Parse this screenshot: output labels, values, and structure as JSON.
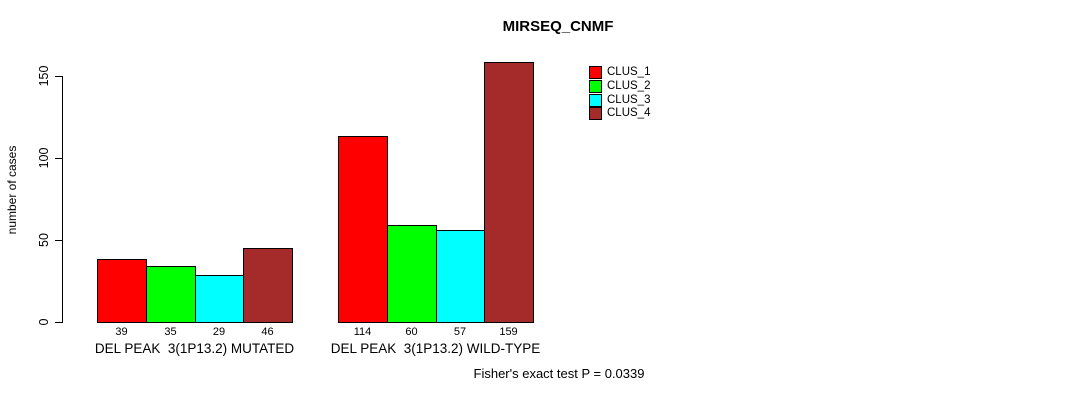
{
  "title": "MIRSEQ_CNMF",
  "footer": "Fisher's exact test P = 0.0339",
  "chart_data": {
    "type": "bar",
    "title": "MIRSEQ_CNMF",
    "xlabel": "",
    "ylabel": "number of cases",
    "ylim": [
      0,
      150
    ],
    "yticks": [
      0,
      50,
      100,
      150
    ],
    "grid": false,
    "legend_position": "top-right",
    "categories": [
      "DEL PEAK  3(1P13.2) MUTATED",
      "DEL PEAK  3(1P13.2) WILD-TYPE"
    ],
    "series": [
      {
        "name": "CLUS_1",
        "color": "#ff0000",
        "values": [
          39,
          114
        ]
      },
      {
        "name": "CLUS_2",
        "color": "#00ff00",
        "values": [
          35,
          60
        ]
      },
      {
        "name": "CLUS_3",
        "color": "#00ffff",
        "values": [
          29,
          57
        ]
      },
      {
        "name": "CLUS_4",
        "color": "#a52a2a",
        "values": [
          46,
          159
        ]
      }
    ],
    "bar_value_labels_shown": true,
    "annotation": "Fisher's exact test P = 0.0339"
  }
}
